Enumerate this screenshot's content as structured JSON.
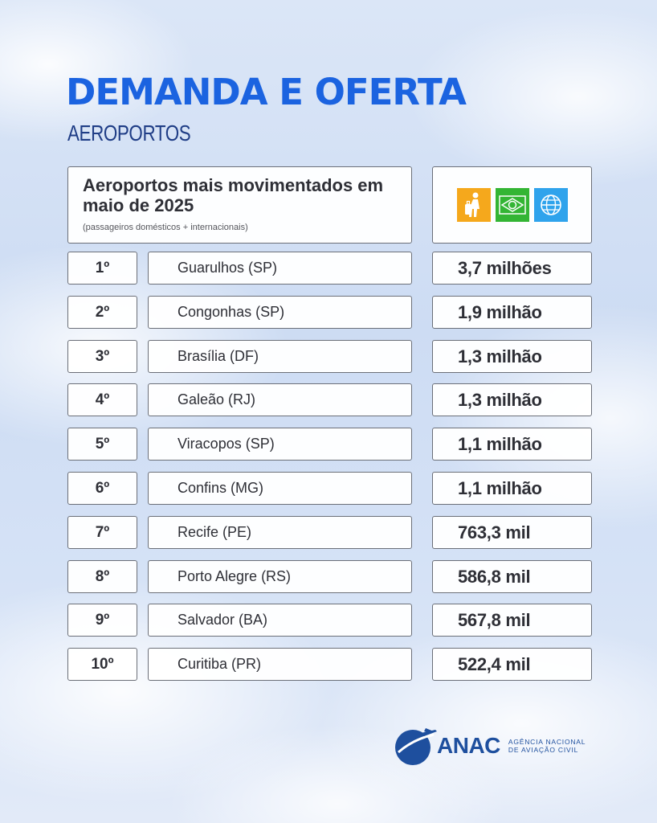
{
  "header": {
    "title": "DEMANDA E OFERTA",
    "subtitle": "AEROPORTOS"
  },
  "table_header": {
    "title": "Aeroportos mais movimentados em maio de 2025",
    "note": "(passageiros domésticos + internacionais)",
    "icons": [
      "passenger-luggage-icon",
      "brazil-flag-icon",
      "globe-icon"
    ],
    "icon_colors": [
      "#f5a81c",
      "#33b534",
      "#2fa3ec"
    ]
  },
  "rows": [
    {
      "rank": "1º",
      "airport": "Guarulhos (SP)",
      "passengers": "3,7 milhões"
    },
    {
      "rank": "2º",
      "airport": "Congonhas (SP)",
      "passengers": "1,9 milhão"
    },
    {
      "rank": "3º",
      "airport": "Brasília (DF)",
      "passengers": "1,3 milhão"
    },
    {
      "rank": "4º",
      "airport": "Galeão (RJ)",
      "passengers": "1,3 milhão"
    },
    {
      "rank": "5º",
      "airport": "Viracopos (SP)",
      "passengers": "1,1 milhão"
    },
    {
      "rank": "6º",
      "airport": "Confins (MG)",
      "passengers": "1,1 milhão"
    },
    {
      "rank": "7º",
      "airport": "Recife (PE)",
      "passengers": "763,3 mil"
    },
    {
      "rank": "8º",
      "airport": "Porto Alegre (RS)",
      "passengers": "586,8 mil"
    },
    {
      "rank": "9º",
      "airport": "Salvador (BA)",
      "passengers": "567,8 mil"
    },
    {
      "rank": "10º",
      "airport": "Curitiba (PR)",
      "passengers": "522,4 mil"
    }
  ],
  "logo": {
    "name": "ANAC",
    "line1": "AGÊNCIA NACIONAL",
    "line2": "DE AVIAÇÃO CIVIL"
  },
  "colors": {
    "title": "#1b63e0",
    "subtitle": "#1f3d86",
    "text": "#2e2f36",
    "brand": "#1e4f9e"
  }
}
